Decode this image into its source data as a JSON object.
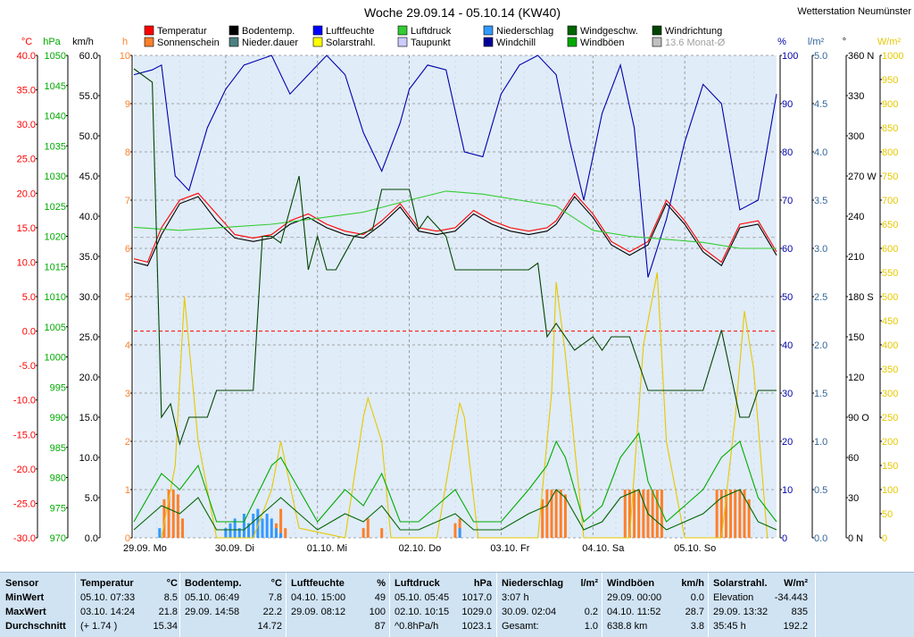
{
  "header": {
    "title": "Woche 29.09.14 - 05.10.14 (KW40)",
    "station": "Wetterstation Neumünster"
  },
  "legend": [
    {
      "label": "Temperatur",
      "color": "#ff0000"
    },
    {
      "label": "Sonnenschein",
      "color": "#ff7f2a"
    },
    {
      "label": "Bodentemp.",
      "color": "#000000"
    },
    {
      "label": "Nieder.dauer",
      "color": "#4c8080"
    },
    {
      "label": "Luftfeuchte",
      "color": "#0000ff"
    },
    {
      "label": "Solarstrahl.",
      "color": "#ffff00"
    },
    {
      "label": "Luftdruck",
      "color": "#33cc33"
    },
    {
      "label": "Taupunkt",
      "color": "#ccccff"
    },
    {
      "label": "Niederschlag",
      "color": "#3399ff"
    },
    {
      "label": "Windchill",
      "color": "#000099"
    },
    {
      "label": "Windgeschw.",
      "color": "#006600"
    },
    {
      "label": "Windböen",
      "color": "#00aa00"
    },
    {
      "label": "Windrichtung",
      "color": "#004400"
    },
    {
      "label": "13.6 Monat-Ø",
      "color": "#c0c0c0"
    }
  ],
  "axes": {
    "temp": {
      "unit": "°C",
      "ticks": [
        "40.0",
        "35.0",
        "30.0",
        "25.0",
        "20.0",
        "15.0",
        "10.0",
        "5.0",
        "0.0",
        "-5.0",
        "-10.0",
        "-15.0",
        "-20.0",
        "-25.0",
        "-30.0"
      ],
      "color": "#ff0000"
    },
    "pressure": {
      "unit": "hPa",
      "ticks": [
        "1050",
        "1045",
        "1040",
        "1035",
        "1030",
        "1025",
        "1020",
        "1015",
        "1010",
        "1005",
        "1000",
        "995",
        "990",
        "985",
        "980",
        "975",
        "970"
      ],
      "color": "#00aa00"
    },
    "wind": {
      "unit": "km/h",
      "ticks": [
        "60.0",
        "55.0",
        "50.0",
        "45.0",
        "40.0",
        "35.0",
        "30.0",
        "25.0",
        "20.0",
        "15.0",
        "10.0",
        "5.0",
        "0.0"
      ],
      "color": "#000000"
    },
    "sun": {
      "unit": "h",
      "ticks": [
        "10",
        "9",
        "8",
        "7",
        "6",
        "5",
        "4",
        "3",
        "2",
        "1",
        "0"
      ],
      "color": "#ff7f2a"
    },
    "humidity": {
      "unit": "%",
      "ticks": [
        "100",
        "90",
        "80",
        "70",
        "60",
        "50",
        "40",
        "30",
        "20",
        "10",
        "0"
      ],
      "color": "#0000aa"
    },
    "rain": {
      "unit": "l/m²",
      "ticks": [
        "5.0",
        "4.5",
        "4.0",
        "3.5",
        "3.0",
        "2.5",
        "2.0",
        "1.5",
        "1.0",
        "0.5",
        "0.0"
      ],
      "color": "#336699"
    },
    "winddir": {
      "unit": "°",
      "ticks": [
        "360 N",
        "330",
        "300",
        "270 W",
        "240",
        "210",
        "180 S",
        "150",
        "120",
        "90 O",
        "60",
        "30",
        "0 N"
      ],
      "color": "#000000"
    },
    "solar": {
      "unit": "W/m²",
      "ticks": [
        "1000",
        "950",
        "900",
        "850",
        "800",
        "750",
        "700",
        "650",
        "600",
        "550",
        "500",
        "450",
        "400",
        "350",
        "300",
        "250",
        "200",
        "150",
        "100",
        "50",
        "0"
      ],
      "color": "#e6c800"
    }
  },
  "chart_data": {
    "type": "line",
    "x_labels": [
      "29.09. Mo",
      "30.09. Di",
      "01.10. Mi",
      "02.10. Do",
      "03.10. Fr",
      "04.10. Sa",
      "05.10. So"
    ],
    "x_unit_note": "",
    "series": [
      {
        "name": "Temperatur",
        "axis": "temp",
        "color": "#ff0000",
        "x": [
          0,
          0.15,
          0.3,
          0.5,
          0.7,
          0.9,
          1.1,
          1.3,
          1.5,
          1.7,
          1.9,
          2.1,
          2.3,
          2.5,
          2.7,
          2.9,
          3.1,
          3.3,
          3.5,
          3.7,
          3.9,
          4.1,
          4.3,
          4.5,
          4.6,
          4.8,
          5.0,
          5.2,
          5.4,
          5.6,
          5.8,
          6.0,
          6.2,
          6.4,
          6.6,
          6.8,
          7.0
        ],
        "values": [
          10.5,
          10,
          15,
          19,
          20,
          17,
          14,
          13.5,
          14,
          16,
          17,
          15.5,
          14.5,
          14,
          16,
          18.5,
          15,
          14.5,
          15,
          17.5,
          16,
          15,
          14.5,
          15,
          16,
          20,
          17,
          13,
          11.5,
          13,
          19,
          16,
          12,
          10,
          15.5,
          16,
          11.5
        ]
      },
      {
        "name": "Bodentemp.",
        "axis": "temp",
        "color": "#000000",
        "x": [
          0,
          0.15,
          0.3,
          0.5,
          0.7,
          0.9,
          1.1,
          1.3,
          1.5,
          1.7,
          1.9,
          2.1,
          2.3,
          2.5,
          2.7,
          2.9,
          3.1,
          3.3,
          3.5,
          3.7,
          3.9,
          4.1,
          4.3,
          4.5,
          4.6,
          4.8,
          5.0,
          5.2,
          5.4,
          5.6,
          5.8,
          6.0,
          6.2,
          6.4,
          6.6,
          6.8,
          7.0
        ],
        "values": [
          10,
          9.5,
          14,
          18.5,
          19.5,
          16,
          13.5,
          13,
          13.5,
          15.5,
          16.5,
          15,
          14,
          13.5,
          15.5,
          18,
          14.5,
          14,
          14.5,
          17,
          15.5,
          14.5,
          14,
          14.5,
          15.5,
          19.5,
          16.5,
          12.5,
          11,
          12.5,
          18.5,
          15.5,
          11.5,
          9.5,
          15,
          15.5,
          11
        ]
      },
      {
        "name": "Luftfeuchte",
        "axis": "humidity",
        "color": "#0000aa",
        "x": [
          0,
          0.2,
          0.3,
          0.45,
          0.6,
          0.8,
          1.0,
          1.2,
          1.5,
          1.7,
          1.9,
          2.1,
          2.3,
          2.5,
          2.7,
          2.9,
          3.0,
          3.2,
          3.4,
          3.6,
          3.8,
          4.0,
          4.2,
          4.4,
          4.6,
          4.75,
          4.9,
          5.1,
          5.3,
          5.45,
          5.6,
          5.8,
          6.0,
          6.2,
          6.4,
          6.6,
          6.8,
          7.0
        ],
        "values": [
          96,
          97,
          98,
          75,
          72,
          85,
          93,
          98,
          100,
          92,
          96,
          100,
          96,
          84,
          76,
          86,
          93,
          98,
          97,
          80,
          79,
          92,
          98,
          100,
          96,
          82,
          70,
          88,
          98,
          85,
          54,
          66,
          82,
          94,
          90,
          68,
          70,
          92
        ]
      },
      {
        "name": "Luftdruck",
        "axis": "pressure",
        "color": "#33cc33",
        "x": [
          0,
          0.5,
          1,
          1.5,
          2,
          2.5,
          3,
          3.4,
          3.8,
          4.2,
          4.6,
          5.0,
          5.4,
          5.8,
          6.2,
          6.6,
          7.0
        ],
        "values": [
          1021.5,
          1021,
          1021.5,
          1022,
          1023,
          1024,
          1026,
          1027.5,
          1027,
          1026,
          1025,
          1021,
          1020,
          1019.5,
          1019,
          1018,
          1018
        ]
      },
      {
        "name": "Solarstrahl.",
        "axis": "solar",
        "color": "#e6c800",
        "x": [
          0.3,
          0.45,
          0.55,
          0.7,
          0.9,
          1.3,
          1.5,
          1.6,
          1.8,
          2.3,
          2.5,
          2.55,
          2.7,
          2.8,
          3.3,
          3.55,
          3.6,
          3.75,
          4.4,
          4.55,
          4.6,
          4.7,
          4.9,
          5.4,
          5.55,
          5.7,
          5.8,
          6.0,
          6.4,
          6.55,
          6.65,
          6.75,
          6.9
        ],
        "values": [
          0,
          150,
          500,
          200,
          0,
          0,
          100,
          200,
          20,
          0,
          250,
          290,
          200,
          0,
          0,
          280,
          250,
          0,
          0,
          300,
          530,
          380,
          0,
          0,
          400,
          550,
          200,
          0,
          0,
          250,
          470,
          350,
          0
        ]
      },
      {
        "name": "Windgeschw.",
        "axis": "wind",
        "color": "#006600",
        "x": [
          0,
          0.3,
          0.5,
          0.7,
          0.9,
          1.2,
          1.5,
          1.6,
          1.8,
          2.0,
          2.3,
          2.5,
          2.7,
          2.9,
          3.1,
          3.3,
          3.5,
          3.7,
          4.0,
          4.3,
          4.5,
          4.6,
          4.7,
          4.9,
          5.1,
          5.3,
          5.5,
          5.6,
          5.8,
          6.0,
          6.2,
          6.4,
          6.6,
          6.8,
          7.0
        ],
        "values": [
          1,
          4,
          3,
          5,
          1,
          1,
          4,
          5,
          3,
          1,
          3,
          2,
          4,
          1,
          1,
          2,
          3,
          1,
          1,
          3,
          4,
          6,
          5,
          1,
          2,
          5,
          6,
          3,
          1,
          2,
          3,
          5,
          6,
          2,
          1
        ]
      },
      {
        "name": "Windböen",
        "axis": "wind",
        "color": "#00aa00",
        "x": [
          0,
          0.3,
          0.5,
          0.7,
          0.9,
          1.2,
          1.5,
          1.6,
          1.8,
          2.0,
          2.3,
          2.5,
          2.7,
          2.9,
          3.1,
          3.3,
          3.5,
          3.7,
          4.0,
          4.3,
          4.5,
          4.6,
          4.7,
          4.9,
          5.1,
          5.3,
          5.5,
          5.6,
          5.8,
          6.0,
          6.2,
          6.4,
          6.6,
          6.8,
          7.0
        ],
        "values": [
          2,
          8,
          6,
          9,
          2,
          2,
          9,
          10,
          6,
          2,
          6,
          4,
          8,
          2,
          2,
          4,
          6,
          2,
          2,
          6,
          9,
          12,
          10,
          2,
          4,
          10,
          13,
          7,
          2,
          4,
          6,
          10,
          12,
          5,
          2
        ]
      },
      {
        "name": "Windrichtung",
        "axis": "winddir",
        "color": "#004400",
        "x": [
          0,
          0.2,
          0.3,
          0.4,
          0.5,
          0.6,
          0.8,
          0.9,
          1.3,
          1.4,
          1.5,
          1.6,
          1.8,
          1.9,
          2.0,
          2.1,
          2.2,
          2.4,
          2.6,
          2.7,
          3.0,
          3.1,
          3.2,
          3.4,
          3.5,
          4.3,
          4.4,
          4.5,
          4.6,
          4.8,
          5.0,
          5.1,
          5.2,
          5.4,
          5.6,
          5.8,
          6.0,
          6.2,
          6.4,
          6.6,
          6.7,
          6.8,
          7.0
        ],
        "values": [
          350,
          340,
          90,
          100,
          70,
          90,
          90,
          110,
          110,
          225,
          225,
          220,
          270,
          200,
          225,
          200,
          200,
          225,
          230,
          260,
          260,
          230,
          240,
          225,
          200,
          200,
          205,
          150,
          160,
          140,
          150,
          140,
          150,
          150,
          110,
          110,
          110,
          110,
          155,
          90,
          90,
          110,
          110
        ]
      }
    ],
    "bars": [
      {
        "name": "Sonnenschein",
        "axis": "sun",
        "color": "#ff7f2a",
        "x": [
          0.33,
          0.38,
          0.43,
          0.48,
          0.53,
          1.55,
          1.6,
          1.65,
          2.5,
          2.55,
          2.7,
          3.5,
          3.55,
          4.45,
          4.5,
          4.55,
          4.6,
          4.65,
          4.7,
          5.35,
          5.4,
          5.45,
          5.5,
          5.55,
          5.6,
          5.65,
          5.7,
          5.75,
          6.35,
          6.4,
          6.45,
          6.5,
          6.55,
          6.6,
          6.65,
          6.7
        ],
        "values": [
          0.8,
          1.0,
          1.0,
          0.9,
          0.4,
          0.3,
          0.6,
          0.2,
          0.2,
          0.4,
          0.2,
          0.3,
          0.4,
          0.8,
          1.0,
          1.0,
          1.0,
          1.0,
          0.9,
          1.0,
          1.0,
          1.0,
          1.0,
          1.0,
          1.0,
          1.0,
          1.0,
          1.0,
          1.0,
          1.0,
          1.0,
          1.0,
          1.0,
          1.0,
          1.0,
          0.8
        ]
      },
      {
        "name": "Niederschlag",
        "axis": "rain",
        "color": "#3399ff",
        "x": [
          0.28,
          1.0,
          1.05,
          1.1,
          1.15,
          1.2,
          1.25,
          1.3,
          1.35,
          1.4,
          1.45,
          1.5,
          1.55,
          1.6,
          3.55
        ],
        "values": [
          0.1,
          0.1,
          0.15,
          0.2,
          0.1,
          0.25,
          0.15,
          0.25,
          0.3,
          0.2,
          0.25,
          0.2,
          0.1,
          0.05,
          0.1
        ]
      }
    ],
    "reference_lines": [
      {
        "axis": "temp",
        "value": 0,
        "color": "#ff0000",
        "style": "dashed"
      },
      {
        "axis": "temp",
        "value": 13.6,
        "color": "#b0b0b0",
        "style": "dashed"
      }
    ]
  },
  "stats": {
    "row_labels": [
      "Sensor",
      "MinWert",
      "MaxWert",
      "Durchschnitt"
    ],
    "columns": [
      {
        "title": "Temperatur",
        "unit": "°C",
        "rows": [
          [
            "05.10.  07:33",
            "8.5"
          ],
          [
            "03.10.  14:24",
            "21.8"
          ],
          [
            "(+ 1.74 )",
            "15.34"
          ]
        ]
      },
      {
        "title": "Bodentemp.",
        "unit": "°C",
        "rows": [
          [
            "05.10.  06:49",
            "7.8"
          ],
          [
            "29.09.  14:58",
            "22.2"
          ],
          [
            "",
            "14.72"
          ]
        ]
      },
      {
        "title": "Luftfeuchte",
        "unit": "%",
        "rows": [
          [
            "04.10.  15:00",
            "49"
          ],
          [
            "29.09.  08:12",
            "100"
          ],
          [
            "",
            "87"
          ]
        ]
      },
      {
        "title": "Luftdruck",
        "unit": "hPa",
        "rows": [
          [
            "05.10.  05:45",
            "1017.0"
          ],
          [
            "02.10.  10:15",
            "1029.0"
          ],
          [
            "^0.8hPa/h",
            "1023.1"
          ]
        ]
      },
      {
        "title": "Niederschlag",
        "unit": "l/m²",
        "rows": [
          [
            "3:07 h",
            ""
          ],
          [
            "30.09.  02:04",
            "0.2"
          ],
          [
            "Gesamt:",
            "1.0"
          ]
        ]
      },
      {
        "title": "Windböen",
        "unit": "km/h",
        "rows": [
          [
            "29.09.  00:00",
            "0.0"
          ],
          [
            "04.10.  11:52",
            "28.7"
          ],
          [
            "638.8 km",
            "3.8"
          ]
        ]
      },
      {
        "title": "Solarstrahl.",
        "unit": "W/m²",
        "rows": [
          [
            "Elevation",
            "-34.443"
          ],
          [
            "29.09.  13:32",
            "835"
          ],
          [
            "35:45 h",
            "192.2"
          ]
        ]
      }
    ]
  }
}
